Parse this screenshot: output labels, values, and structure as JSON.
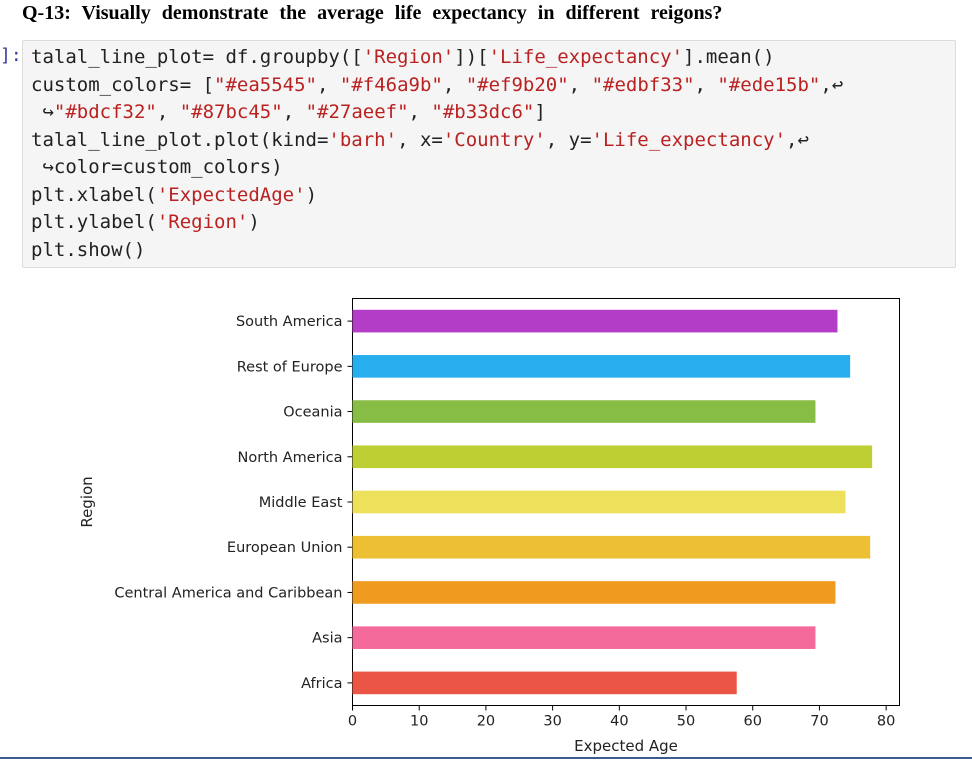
{
  "question": "Q-13: Visually demonstrate the average life expectancy in different reigons?",
  "cell": {
    "prompt": "]:",
    "code_lines": [
      [
        {
          "t": "talal_line_plot= df.groupby(["
        },
        {
          "t": "'Region'",
          "s": true
        },
        {
          "t": "])["
        },
        {
          "t": "'Life_expectancy'",
          "s": true
        },
        {
          "t": "].mean()"
        }
      ],
      [
        {
          "t": "custom_colors= ["
        },
        {
          "t": "\"#ea5545\"",
          "s": true
        },
        {
          "t": ", "
        },
        {
          "t": "\"#f46a9b\"",
          "s": true
        },
        {
          "t": ", "
        },
        {
          "t": "\"#ef9b20\"",
          "s": true
        },
        {
          "t": ", "
        },
        {
          "t": "\"#edbf33\"",
          "s": true
        },
        {
          "t": ", "
        },
        {
          "t": "\"#ede15b\"",
          "s": true
        },
        {
          "t": ",↩"
        }
      ],
      [
        {
          "t": " ↪"
        },
        {
          "t": "\"#bdcf32\"",
          "s": true
        },
        {
          "t": ", "
        },
        {
          "t": "\"#87bc45\"",
          "s": true
        },
        {
          "t": ", "
        },
        {
          "t": "\"#27aeef\"",
          "s": true
        },
        {
          "t": ", "
        },
        {
          "t": "\"#b33dc6\"",
          "s": true
        },
        {
          "t": "]"
        }
      ],
      [
        {
          "t": "talal_line_plot.plot(kind="
        },
        {
          "t": "'barh'",
          "s": true
        },
        {
          "t": ", x="
        },
        {
          "t": "'Country'",
          "s": true
        },
        {
          "t": ", y="
        },
        {
          "t": "'Life_expectancy'",
          "s": true
        },
        {
          "t": ",↩"
        }
      ],
      [
        {
          "t": " ↪color=custom_colors)"
        }
      ],
      [
        {
          "t": "plt.xlabel("
        },
        {
          "t": "'ExpectedAge'",
          "s": true
        },
        {
          "t": ")"
        }
      ],
      [
        {
          "t": "plt.ylabel("
        },
        {
          "t": "'Region'",
          "s": true
        },
        {
          "t": ")"
        }
      ],
      [
        {
          "t": "plt.show()"
        }
      ]
    ]
  },
  "chart_data": {
    "type": "bar",
    "orientation": "horizontal",
    "categories": [
      "Africa",
      "Asia",
      "Central America and Caribbean",
      "European Union",
      "Middle East",
      "North America",
      "Oceania",
      "Rest of Europe",
      "South America"
    ],
    "values": [
      57.6,
      69.4,
      72.4,
      77.6,
      73.9,
      77.9,
      69.4,
      74.6,
      72.7
    ],
    "colors": [
      "#ea5545",
      "#f46a9b",
      "#ef9b20",
      "#edbf33",
      "#ede15b",
      "#bdcf32",
      "#87bc45",
      "#27aeef",
      "#b33dc6"
    ],
    "xlabel": "Expected Age",
    "ylabel": "Region",
    "xlim": [
      0,
      82
    ],
    "xticks": [
      0,
      10,
      20,
      30,
      40,
      50,
      60,
      70,
      80
    ],
    "grid": false
  }
}
